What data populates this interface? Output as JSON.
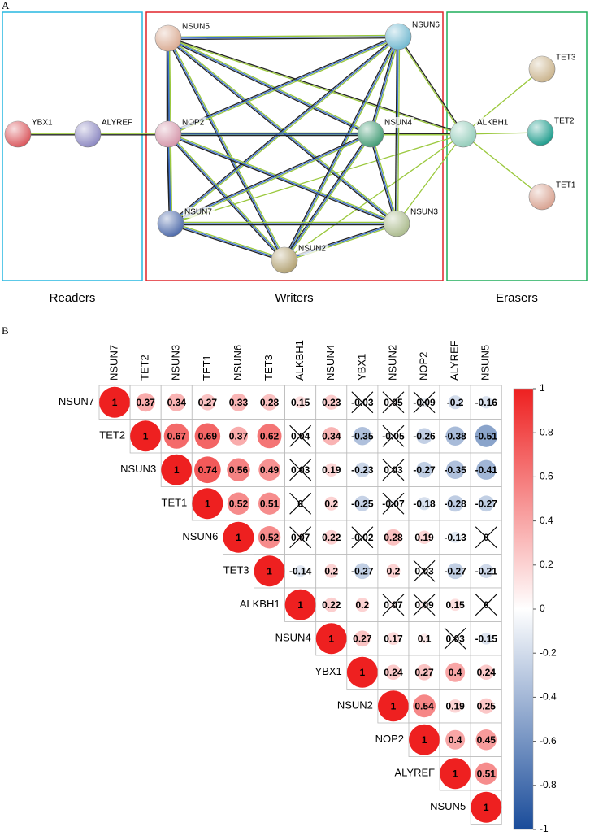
{
  "panel_a": {
    "label": "A",
    "groups": [
      "Readers",
      "Writers",
      "Erasers"
    ],
    "nodes": [
      "YBX1",
      "ALYREF",
      "NSUN5",
      "NSUN6",
      "NOP2",
      "NSUN4",
      "ALKBH1",
      "TET3",
      "TET2",
      "TET1",
      "NSUN7",
      "NSUN3",
      "NSUN2"
    ]
  },
  "panel_b": {
    "label": "B",
    "labels": [
      "NSUN7",
      "TET2",
      "NSUN3",
      "TET1",
      "NSUN6",
      "TET3",
      "ALKBH1",
      "NSUN4",
      "YBX1",
      "NSUN2",
      "NOP2",
      "ALYREF",
      "NSUN5"
    ],
    "rows": [
      {
        "values": [
          1,
          0.37,
          0.34,
          0.27,
          0.33,
          0.28,
          0.15,
          0.23,
          -0.03,
          0.05,
          -0.09,
          -0.2,
          -0.16
        ],
        "crossed": [
          false,
          false,
          false,
          false,
          false,
          false,
          false,
          false,
          true,
          true,
          true,
          false,
          false
        ]
      },
      {
        "values": [
          1,
          0.67,
          0.69,
          0.37,
          0.62,
          0.04,
          0.34,
          -0.35,
          -0.05,
          -0.26,
          -0.38,
          -0.51
        ],
        "crossed": [
          false,
          false,
          false,
          false,
          false,
          true,
          false,
          false,
          true,
          false,
          false,
          false
        ]
      },
      {
        "values": [
          1,
          0.74,
          0.56,
          0.49,
          0.03,
          0.19,
          -0.23,
          0.03,
          -0.27,
          -0.35,
          -0.41
        ],
        "crossed": [
          false,
          false,
          false,
          false,
          true,
          false,
          false,
          true,
          false,
          false,
          false
        ]
      },
      {
        "values": [
          1,
          0.52,
          0.51,
          0,
          0.2,
          -0.25,
          -0.07,
          -0.18,
          -0.28,
          -0.27
        ],
        "crossed": [
          false,
          false,
          false,
          true,
          false,
          false,
          true,
          false,
          false,
          false
        ]
      },
      {
        "values": [
          1,
          0.52,
          0.07,
          0.22,
          -0.02,
          0.28,
          0.19,
          -0.13,
          0
        ],
        "crossed": [
          false,
          false,
          true,
          false,
          true,
          false,
          false,
          false,
          true
        ]
      },
      {
        "values": [
          1,
          -0.14,
          0.2,
          -0.27,
          0.2,
          0.03,
          -0.27,
          -0.21
        ],
        "crossed": [
          false,
          false,
          false,
          false,
          false,
          true,
          false,
          false
        ]
      },
      {
        "values": [
          1,
          0.22,
          0.2,
          0.07,
          0.09,
          0.15,
          0
        ],
        "crossed": [
          false,
          false,
          false,
          true,
          true,
          false,
          true
        ]
      },
      {
        "values": [
          1,
          0.27,
          0.17,
          0.1,
          0.03,
          -0.15
        ],
        "crossed": [
          false,
          false,
          false,
          false,
          true,
          false
        ]
      },
      {
        "values": [
          1,
          0.24,
          0.27,
          0.4,
          0.24
        ],
        "crossed": [
          false,
          false,
          false,
          false,
          false
        ]
      },
      {
        "values": [
          1,
          0.54,
          0.19,
          0.25
        ],
        "crossed": [
          false,
          false,
          false,
          false
        ]
      },
      {
        "values": [
          1,
          0.4,
          0.45
        ],
        "crossed": [
          false,
          false,
          false
        ]
      },
      {
        "values": [
          1,
          0.51
        ],
        "crossed": [
          false,
          false
        ]
      },
      {
        "values": [
          1
        ],
        "crossed": [
          false
        ]
      }
    ],
    "colors": {
      "positive": "#ee2020",
      "negative": "#1a4c9a",
      "zero": "#ffffff"
    },
    "colorbar_lim": [
      -1,
      1
    ],
    "colorbar_ticks": [
      1,
      0.8,
      0.6,
      0.4,
      0.2,
      0,
      -0.2,
      -0.4,
      -0.6,
      -0.8,
      -1
    ]
  }
}
